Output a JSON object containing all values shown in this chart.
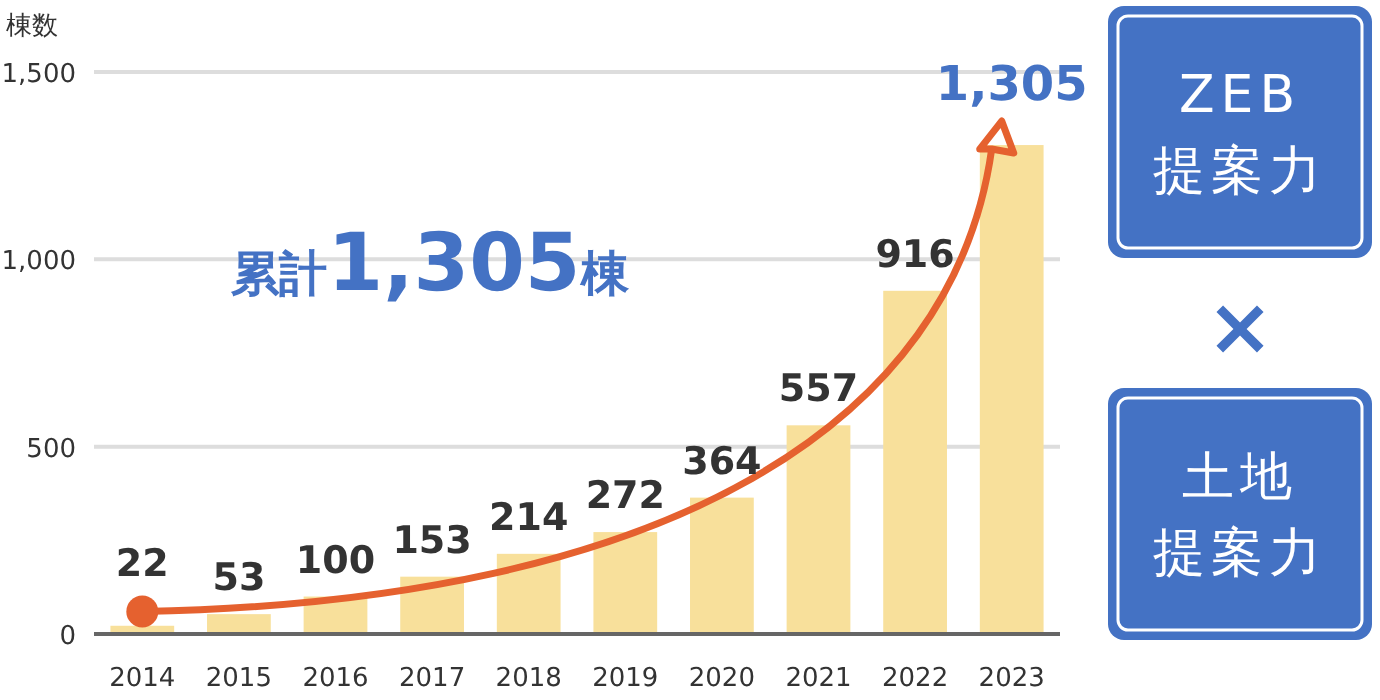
{
  "chart_data": {
    "type": "bar",
    "ylabel": "棟数",
    "categories": [
      "2014",
      "2015",
      "2016",
      "2017",
      "2018",
      "2019",
      "2020",
      "2021",
      "2022",
      "2023"
    ],
    "values": [
      22,
      53,
      100,
      153,
      214,
      272,
      364,
      557,
      916,
      1305
    ],
    "value_labels": [
      "22",
      "53",
      "100",
      "153",
      "214",
      "272",
      "364",
      "557",
      "916",
      "1,305"
    ],
    "color": "#f8e09b",
    "ylim": [
      0,
      1500
    ],
    "yticks": [
      0,
      {
        "value": 500,
        "label": "500"
      },
      {
        "value": 1000,
        "label": "1,000"
      },
      {
        "value": 1500,
        "label": "1,500"
      }
    ],
    "grid": "y",
    "annotations": [
      "累計1,305棟",
      "ZEB",
      "提案力",
      "×",
      "土地",
      "提案力"
    ]
  }
}
